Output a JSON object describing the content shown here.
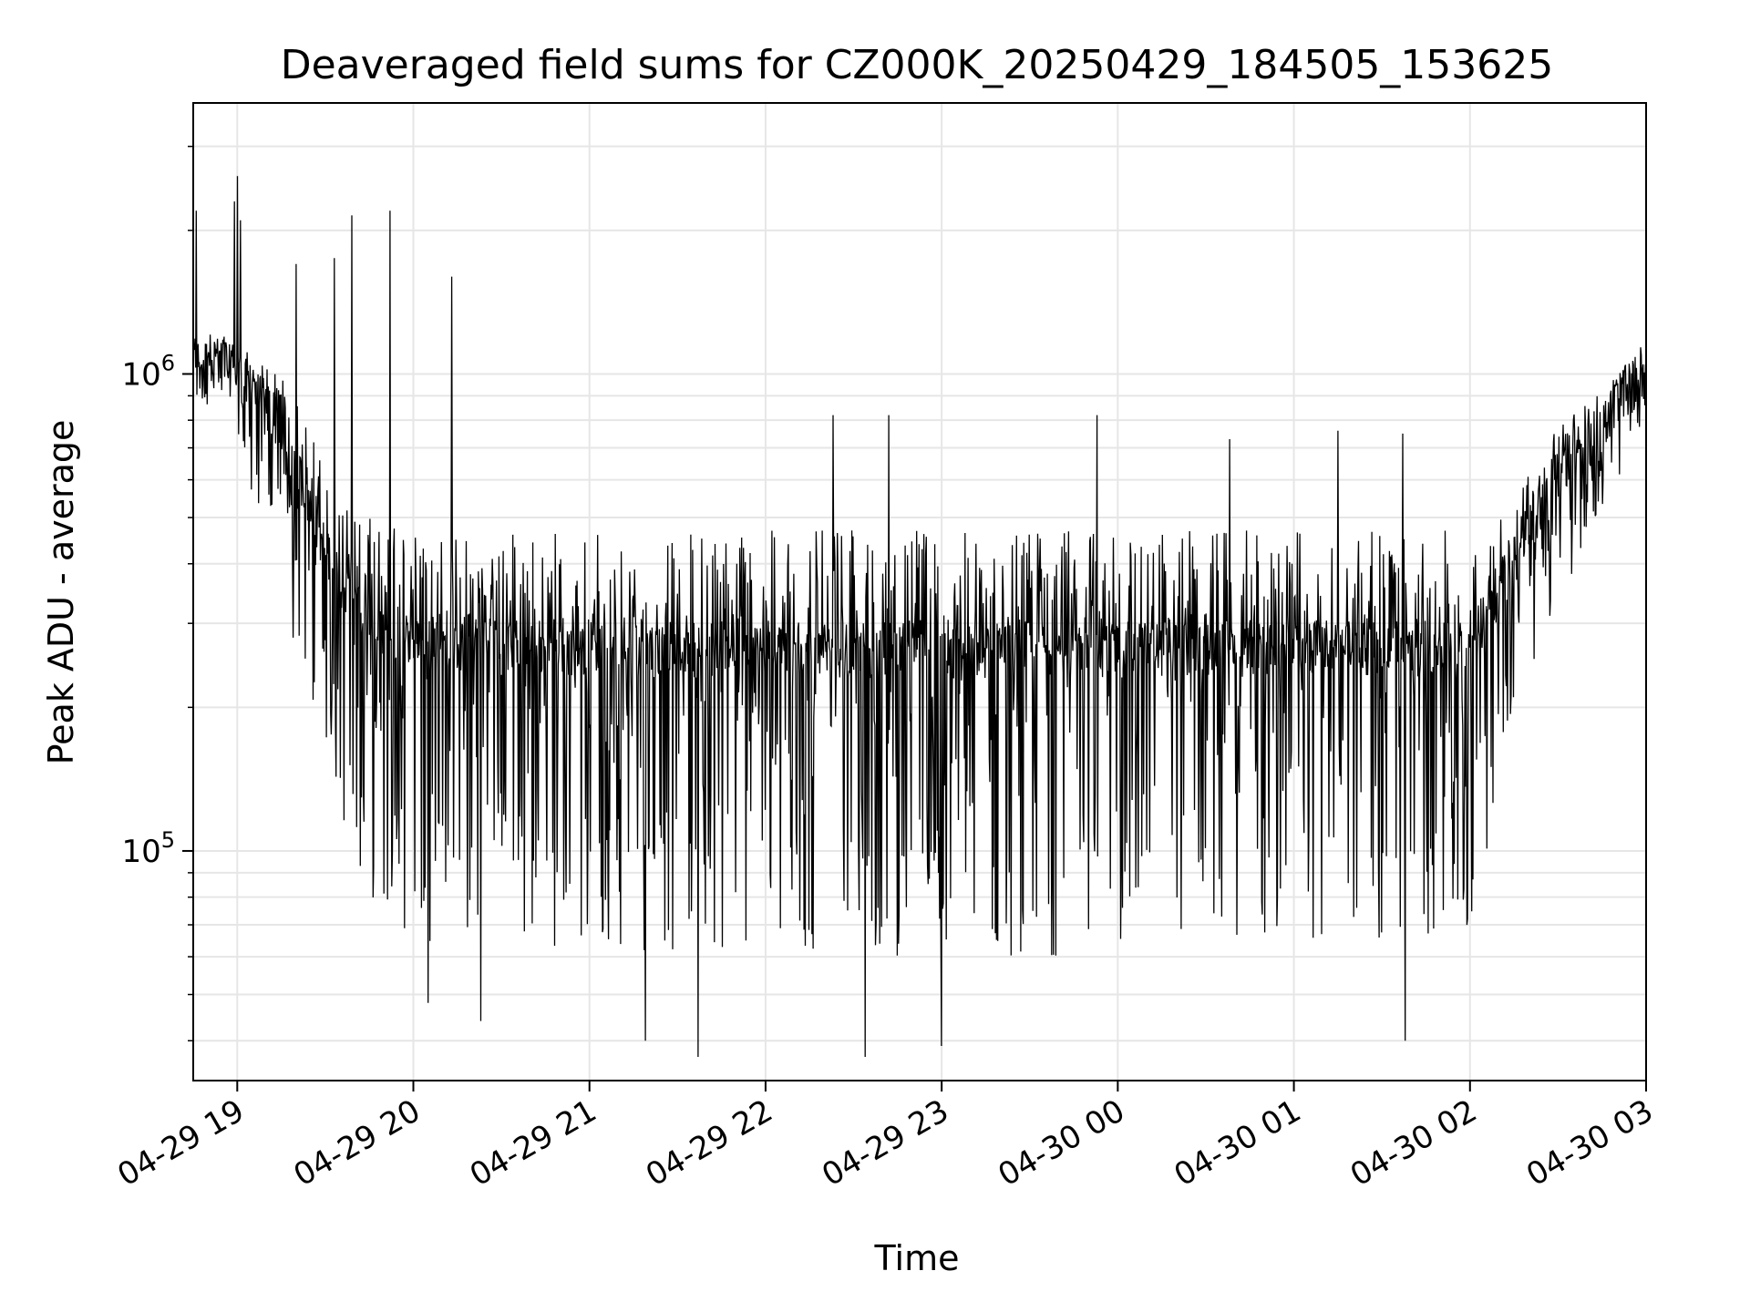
{
  "chart_data": {
    "type": "line",
    "title": "Deaveraged field sums for CZ000K_20250429_184505_153625",
    "xlabel": "Time",
    "ylabel": "Peak ADU - average",
    "yscale": "log",
    "ylim": [
      33000,
      3700000
    ],
    "xlim": [
      "2025-04-29 18:45",
      "2025-04-30 03:00"
    ],
    "grid": true,
    "line_color": "#000000",
    "x_ticks": [
      "04-29 19",
      "04-29 20",
      "04-29 21",
      "04-29 22",
      "04-29 23",
      "04-30 00",
      "04-30 01",
      "04-30 02",
      "04-30 03"
    ],
    "y_ticks": [
      {
        "value": 100000,
        "base": "10",
        "exp": "5"
      },
      {
        "value": 1000000,
        "base": "10",
        "exp": "6"
      }
    ],
    "series": [
      {
        "envelope": [
          {
            "x": "2025-04-29 18:45",
            "hi": 1150000,
            "lo": 880000
          },
          {
            "x": "2025-04-29 18:55",
            "hi": 1200000,
            "lo": 800000
          },
          {
            "x": "2025-04-29 19:05",
            "hi": 1100000,
            "lo": 560000
          },
          {
            "x": "2025-04-29 19:15",
            "hi": 1000000,
            "lo": 430000
          },
          {
            "x": "2025-04-29 19:25",
            "hi": 760000,
            "lo": 200000
          },
          {
            "x": "2025-04-29 19:35",
            "hi": 560000,
            "lo": 120000
          },
          {
            "x": "2025-04-29 19:45",
            "hi": 500000,
            "lo": 80000
          },
          {
            "x": "2025-04-29 20:00",
            "hi": 470000,
            "lo": 65000
          },
          {
            "x": "2025-04-29 21:00",
            "hi": 470000,
            "lo": 62000
          },
          {
            "x": "2025-04-29 22:00",
            "hi": 470000,
            "lo": 60000
          },
          {
            "x": "2025-04-29 23:00",
            "hi": 470000,
            "lo": 60000
          },
          {
            "x": "2025-04-30 00:00",
            "hi": 470000,
            "lo": 60000
          },
          {
            "x": "2025-04-30 01:00",
            "hi": 470000,
            "lo": 62000
          },
          {
            "x": "2025-04-30 02:00",
            "hi": 470000,
            "lo": 65000
          },
          {
            "x": "2025-04-30 02:15",
            "hi": 560000,
            "lo": 180000
          },
          {
            "x": "2025-04-30 02:30",
            "hi": 780000,
            "lo": 330000
          },
          {
            "x": "2025-04-30 02:45",
            "hi": 930000,
            "lo": 520000
          },
          {
            "x": "2025-04-30 03:00",
            "hi": 1150000,
            "lo": 780000
          }
        ],
        "spikes": [
          {
            "x": "2025-04-29 18:46",
            "y": 2200000
          },
          {
            "x": "2025-04-29 18:59",
            "y": 2300000
          },
          {
            "x": "2025-04-29 19:00",
            "y": 2600000
          },
          {
            "x": "2025-04-29 19:01",
            "y": 2100000
          },
          {
            "x": "2025-04-29 19:20",
            "y": 1700000
          },
          {
            "x": "2025-04-29 19:33",
            "y": 1750000
          },
          {
            "x": "2025-04-29 19:39",
            "y": 2150000
          },
          {
            "x": "2025-04-29 19:52",
            "y": 2200000
          },
          {
            "x": "2025-04-29 20:13",
            "y": 1600000
          },
          {
            "x": "2025-04-29 19:19",
            "y": 280000
          },
          {
            "x": "2025-04-29 20:05",
            "y": 48000
          },
          {
            "x": "2025-04-29 20:23",
            "y": 44000
          },
          {
            "x": "2025-04-29 21:19",
            "y": 40000
          },
          {
            "x": "2025-04-29 21:37",
            "y": 37000
          },
          {
            "x": "2025-04-29 22:23",
            "y": 820000
          },
          {
            "x": "2025-04-29 22:34",
            "y": 37000
          },
          {
            "x": "2025-04-29 22:42",
            "y": 820000
          },
          {
            "x": "2025-04-29 23:00",
            "y": 39000
          },
          {
            "x": "2025-04-29 23:53",
            "y": 820000
          },
          {
            "x": "2025-04-30 00:38",
            "y": 730000
          },
          {
            "x": "2025-04-30 01:15",
            "y": 760000
          },
          {
            "x": "2025-04-30 01:38",
            "y": 40000
          },
          {
            "x": "2025-04-30 01:37",
            "y": 750000
          }
        ]
      }
    ]
  }
}
